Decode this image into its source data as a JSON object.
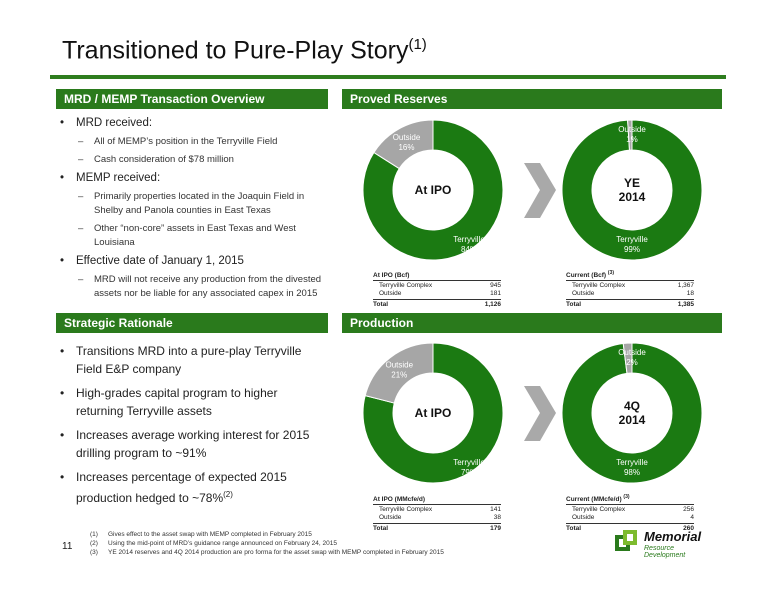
{
  "title": {
    "text": "Transitioned to Pure-Play Story",
    "sup": "(1)"
  },
  "colors": {
    "green": "#1b7a12",
    "header_green": "#2a7a1c",
    "gray": "#a6a6a6",
    "chevron": "#a9a9a9"
  },
  "sections": {
    "overview": "MRD / MEMP Transaction Overview",
    "reserves": "Proved Reserves",
    "strategic": "Strategic Rationale",
    "production": "Production"
  },
  "overview": {
    "b1": "MRD received:",
    "b1_s1": "All of MEMP’s position in the Terryville Field",
    "b1_s2": "Cash consideration of $78 million",
    "b2": "MEMP received:",
    "b2_s1": "Primarily properties located in the Joaquin Field in Shelby and Panola counties in East Texas",
    "b2_s2": "Other “non-core” assets in East Texas and West Louisiana",
    "b3": "Effective date of January 1, 2015",
    "b3_s1": "MRD will not receive any production from the divested assets nor be liable for any associated capex in 2015"
  },
  "strategic": {
    "b1": "Transitions MRD into a pure-play Terryville Field E&P company",
    "b2": "High-grades capital program to higher returning Terryville assets",
    "b3": "Increases average working interest for 2015 drilling program to ~91%",
    "b4": "Increases percentage of expected 2015 production hedged to ~78%",
    "b4_sup": "(2)"
  },
  "chart_data": [
    {
      "type": "pie",
      "title": "Proved Reserves",
      "center_label": "At IPO",
      "categories": [
        "Terryville",
        "Outside"
      ],
      "values": [
        84,
        16
      ],
      "labels": {
        "terryville_name": "Terryville",
        "terryville_pct": "84%",
        "outside_name": "Outside",
        "outside_pct": "16%"
      }
    },
    {
      "type": "pie",
      "title": "Proved Reserves",
      "center_label": "YE\n2014",
      "center_l1": "YE",
      "center_l2": "2014",
      "categories": [
        "Terryville",
        "Outside"
      ],
      "values": [
        99,
        1
      ],
      "labels": {
        "terryville_name": "Terryville",
        "terryville_pct": "99%",
        "outside_name": "Outside",
        "outside_pct": "1%"
      }
    },
    {
      "type": "pie",
      "title": "Production",
      "center_label": "At IPO",
      "categories": [
        "Terryville",
        "Outside"
      ],
      "values": [
        79,
        21
      ],
      "labels": {
        "terryville_name": "Terryville",
        "terryville_pct": "79%",
        "outside_name": "Outside",
        "outside_pct": "21%"
      }
    },
    {
      "type": "pie",
      "title": "Production",
      "center_label": "4Q\n2014",
      "center_l1": "4Q",
      "center_l2": "2014",
      "categories": [
        "Terryville",
        "Outside"
      ],
      "values": [
        98,
        2
      ],
      "labels": {
        "terryville_name": "Terryville",
        "terryville_pct": "98%",
        "outside_name": "Outside",
        "outside_pct": "2%"
      }
    }
  ],
  "tables": {
    "t1": {
      "header": "At IPO (Bcf)",
      "sup": "",
      "rows": [
        [
          "Terryville Complex",
          "945"
        ],
        [
          "Outside",
          "181"
        ]
      ],
      "total": [
        "Total",
        "1,126"
      ]
    },
    "t2": {
      "header": "Current (Bcf)",
      "sup": "(3)",
      "rows": [
        [
          "Terryville Complex",
          "1,367"
        ],
        [
          "Outside",
          "18"
        ]
      ],
      "total": [
        "Total",
        "1,385"
      ]
    },
    "t3": {
      "header": "At IPO (MMcfe/d)",
      "sup": "",
      "rows": [
        [
          "Terryville Complex",
          "141"
        ],
        [
          "Outside",
          "38"
        ]
      ],
      "total": [
        "Total",
        "179"
      ]
    },
    "t4": {
      "header": "Current (MMcfe/d)",
      "sup": "(3)",
      "rows": [
        [
          "Terryville Complex",
          "256"
        ],
        [
          "Outside",
          "4"
        ]
      ],
      "total": [
        "Total",
        "260"
      ]
    }
  },
  "footer": {
    "page": "11",
    "notes": [
      [
        "(1)",
        "Gives effect to the asset swap with MEMP completed in February 2015"
      ],
      [
        "(2)",
        "Using the mid-point of MRD’s guidance range announced on February 24, 2015"
      ],
      [
        "(3)",
        "YE 2014 reserves and 4Q 2014 production are pro forma for the asset swap with MEMP completed in February 2015"
      ]
    ]
  },
  "logo": {
    "name": "Memorial",
    "sub": "Resource Development"
  }
}
